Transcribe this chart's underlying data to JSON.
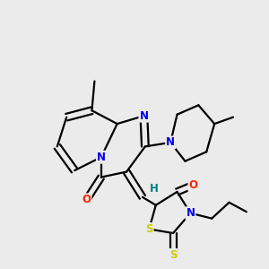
{
  "background_color": "#ebebeb",
  "atom_colors": {
    "N": "#0000ee",
    "O": "#ff2200",
    "S": "#cccc00",
    "C": "#000000",
    "H": "#008080"
  },
  "figsize": [
    3.0,
    3.0
  ],
  "dpi": 100,
  "lw": 1.6,
  "dbo": 0.012
}
